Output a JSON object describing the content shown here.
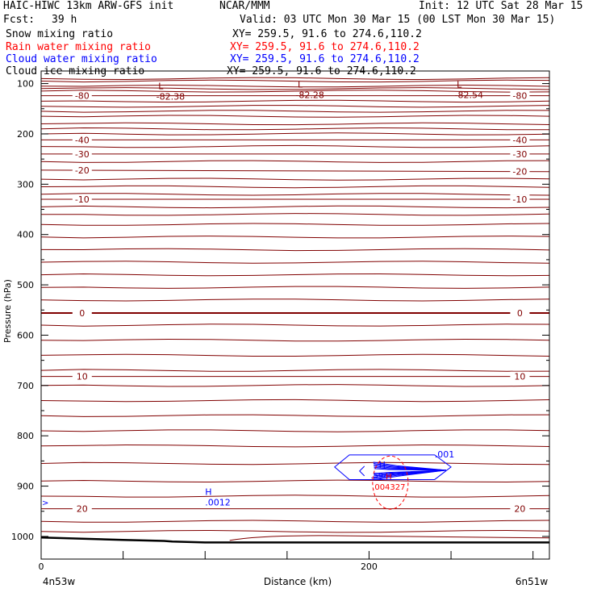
{
  "header": {
    "title": "HAIC-HIWC 13km ARW-GFS init",
    "org": "NCAR/MMM",
    "init": "Init: 12 UTC Sat 28 Mar 15",
    "fcst_label": "Fcst:",
    "fcst_value": "39 h",
    "valid": "Valid: 03 UTC Mon 30 Mar 15 (00 LST Mon 30 Mar 15)"
  },
  "fields": [
    {
      "name": "Snow mixing ratio",
      "xy": "XY= 259.5, 91.6 to 274.6,110.2",
      "color": "#000000"
    },
    {
      "name": "Rain water mixing ratio",
      "xy": "XY= 259.5, 91.6 to 274.6,110.2",
      "color": "#ff0000"
    },
    {
      "name": "Cloud water mixing ratio",
      "xy": "XY= 259.5, 91.6 to 274.6,110.2",
      "color": "#0000ff"
    },
    {
      "name": "Cloud ice mixing ratio",
      "xy": "XY= 259.5, 91.6 to 274.6,110.2",
      "color": "#000000"
    }
  ],
  "colors": {
    "temperature": "#800000",
    "cloud_water": "#0000ff",
    "rain_water": "#ff0000",
    "ground": "#000000"
  },
  "chart_data": {
    "type": "contour-cross-section",
    "ylabel": "Pressure (hPa)",
    "xlabel": "Distance (km)",
    "x_start_label": "4n53w",
    "x_end_label": "6n51w",
    "xlim": [
      0,
      310
    ],
    "ylim": [
      1045,
      75
    ],
    "x_ticks": [
      0,
      50,
      100,
      150,
      200,
      250,
      300
    ],
    "x_tick_labels": [
      {
        "x": 0,
        "label": "0"
      },
      {
        "x": 200,
        "label": "200"
      }
    ],
    "y_ticks": [
      100,
      200,
      300,
      400,
      500,
      600,
      700,
      800,
      900,
      1000
    ],
    "y_tick_labels": [
      "100",
      "200",
      "300",
      "400",
      "500",
      "600",
      "700",
      "800",
      "900",
      "1000"
    ],
    "temperature_isotherms": [
      {
        "value": -80,
        "label": "-80",
        "p_left": 124,
        "p_right": 124
      },
      {
        "value": -40,
        "label": "-40",
        "p_left": 212,
        "p_right": 212
      },
      {
        "value": -30,
        "label": "-30",
        "p_left": 240,
        "p_right": 240
      },
      {
        "value": -20,
        "label": "-20",
        "p_left": 272,
        "p_right": 275
      },
      {
        "value": -10,
        "label": "-10",
        "p_left": 330,
        "p_right": 330
      },
      {
        "value": 0,
        "label": "0",
        "p_left": 556,
        "p_right": 556
      },
      {
        "value": 10,
        "label": "10",
        "p_left": 682,
        "p_right": 682
      },
      {
        "value": 20,
        "label": "20",
        "p_left": 945,
        "p_right": 945
      }
    ],
    "isotherm_levels_unlabeled": [
      90,
      95,
      105,
      110,
      115,
      135,
      145,
      155,
      165,
      180,
      190,
      200,
      225,
      255,
      290,
      305,
      320,
      345,
      360,
      380,
      405,
      430,
      455,
      480,
      505,
      530,
      580,
      610,
      640,
      670,
      700,
      730,
      760,
      790,
      820,
      855,
      890,
      920,
      970,
      990
    ],
    "minima": [
      {
        "symbol": "L",
        "label": "-82.38",
        "x": 73,
        "p": 111
      },
      {
        "symbol": "L",
        "label": "-82.28",
        "x": 158,
        "p": 108
      },
      {
        "symbol": "L",
        "label": "-82.54",
        "x": 255,
        "p": 108
      }
    ],
    "cloud_water_max": {
      "symbol": "H",
      "label": ".5947",
      "x": 208,
      "p": 870
    },
    "cloud_water_contour_label": ".001",
    "cloud_water_low_max": {
      "symbol": "H",
      "label": ".0012",
      "x": 100,
      "p": 932
    },
    "rain_water_max": {
      "symbol": "H",
      "label": ".004327",
      "x": 212,
      "p": 896
    },
    "ground_pressure": [
      [
        0,
        1002
      ],
      [
        50,
        1007
      ],
      [
        75,
        1009
      ],
      [
        80,
        1010
      ],
      [
        100,
        1012
      ],
      [
        125,
        1012
      ],
      [
        150,
        1012
      ],
      [
        200,
        1012
      ],
      [
        250,
        1012
      ],
      [
        300,
        1012
      ],
      [
        310,
        1012
      ]
    ]
  }
}
